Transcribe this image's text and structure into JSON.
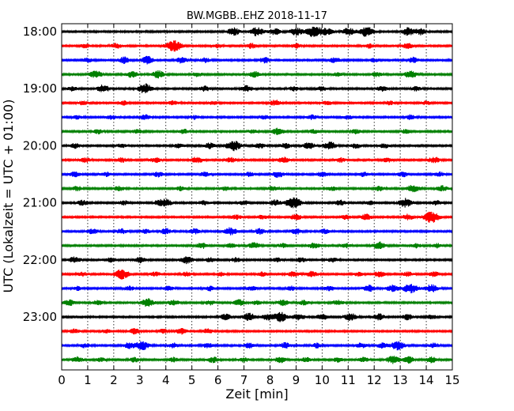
{
  "chart_data": {
    "type": "line",
    "title": "BW.MGBB..EHZ 2018-11-17",
    "xlabel": "Zeit  [min]",
    "ylabel": "UTC (Lokalzeit = UTC + 01:00)",
    "xlim": [
      0,
      15
    ],
    "x_ticks": [
      "0",
      "1",
      "2",
      "3",
      "4",
      "5",
      "6",
      "7",
      "8",
      "9",
      "10",
      "11",
      "12",
      "13",
      "14",
      "15"
    ],
    "y_ticks": [
      "18:00",
      "19:00",
      "20:00",
      "21:00",
      "22:00",
      "23:00"
    ],
    "grid": "vertical-dotted",
    "line_interval_min": 15,
    "series": [
      {
        "start": "18:00",
        "color": "#000000",
        "bursts": [
          [
            6.6,
            0.6
          ],
          [
            7.5,
            0.7
          ],
          [
            8.2,
            0.5
          ],
          [
            9.0,
            0.6
          ],
          [
            9.7,
            0.9
          ],
          [
            10.2,
            0.5
          ],
          [
            11.0,
            0.6
          ],
          [
            11.7,
            0.8
          ],
          [
            13.3,
            0.6
          ],
          [
            13.8,
            0.5
          ]
        ]
      },
      {
        "start": "18:15",
        "color": "#ff0000",
        "bursts": [
          [
            0.9,
            0.35
          ],
          [
            2.1,
            0.4
          ],
          [
            4.3,
            0.9
          ],
          [
            6.0,
            0.3
          ],
          [
            7.3,
            0.4
          ],
          [
            9.0,
            0.35
          ],
          [
            11.8,
            0.35
          ],
          [
            13.3,
            0.45
          ]
        ]
      },
      {
        "start": "18:30",
        "color": "#0000ff",
        "bursts": [
          [
            1.0,
            0.35
          ],
          [
            2.4,
            0.5
          ],
          [
            3.3,
            0.6
          ],
          [
            4.6,
            0.45
          ],
          [
            5.5,
            0.35
          ],
          [
            7.8,
            0.45
          ],
          [
            10.5,
            0.45
          ],
          [
            12.0,
            0.3
          ],
          [
            13.5,
            0.45
          ]
        ]
      },
      {
        "start": "18:45",
        "color": "#008000",
        "bursts": [
          [
            1.3,
            0.6
          ],
          [
            2.7,
            0.5
          ],
          [
            3.7,
            0.6
          ],
          [
            5.2,
            0.35
          ],
          [
            7.4,
            0.5
          ],
          [
            10.6,
            0.3
          ],
          [
            12.1,
            0.35
          ],
          [
            13.4,
            0.6
          ]
        ]
      },
      {
        "start": "19:00",
        "color": "#000000",
        "bursts": [
          [
            0.4,
            0.35
          ],
          [
            1.6,
            0.6
          ],
          [
            3.2,
            0.8
          ],
          [
            5.5,
            0.4
          ],
          [
            7.1,
            0.5
          ],
          [
            8.9,
            0.35
          ],
          [
            10.0,
            0.35
          ],
          [
            12.3,
            0.4
          ],
          [
            13.6,
            0.35
          ]
        ]
      },
      {
        "start": "19:15",
        "color": "#ff0000",
        "bursts": [
          [
            0.8,
            0.3
          ],
          [
            2.4,
            0.3
          ],
          [
            4.3,
            0.35
          ],
          [
            5.8,
            0.3
          ],
          [
            8.2,
            0.45
          ],
          [
            10.2,
            0.3
          ],
          [
            12.6,
            0.3
          ],
          [
            14.0,
            0.3
          ]
        ]
      },
      {
        "start": "19:30",
        "color": "#0000ff",
        "bursts": [
          [
            0.6,
            0.3
          ],
          [
            1.9,
            0.35
          ],
          [
            3.2,
            0.4
          ],
          [
            5.1,
            0.3
          ],
          [
            7.8,
            0.3
          ],
          [
            9.6,
            0.35
          ],
          [
            11.0,
            0.3
          ],
          [
            13.4,
            0.35
          ]
        ]
      },
      {
        "start": "19:45",
        "color": "#008000",
        "bursts": [
          [
            1.4,
            0.35
          ],
          [
            2.9,
            0.3
          ],
          [
            4.7,
            0.35
          ],
          [
            7.3,
            0.3
          ],
          [
            8.3,
            0.55
          ],
          [
            9.7,
            0.3
          ],
          [
            11.3,
            0.35
          ],
          [
            13.2,
            0.3
          ]
        ]
      },
      {
        "start": "20:00",
        "color": "#000000",
        "bursts": [
          [
            0.5,
            0.4
          ],
          [
            2.3,
            0.3
          ],
          [
            4.5,
            0.35
          ],
          [
            5.7,
            0.5
          ],
          [
            6.6,
            0.8
          ],
          [
            7.6,
            0.4
          ],
          [
            8.6,
            0.45
          ],
          [
            9.5,
            0.5
          ],
          [
            10.3,
            0.6
          ],
          [
            11.3,
            0.4
          ],
          [
            12.4,
            0.35
          ]
        ]
      },
      {
        "start": "20:15",
        "color": "#ff0000",
        "bursts": [
          [
            0.9,
            0.4
          ],
          [
            2.3,
            0.35
          ],
          [
            3.6,
            0.4
          ],
          [
            5.2,
            0.5
          ],
          [
            6.5,
            0.4
          ],
          [
            8.5,
            0.5
          ],
          [
            10.7,
            0.35
          ],
          [
            12.5,
            0.35
          ],
          [
            14.3,
            0.5
          ]
        ]
      },
      {
        "start": "20:30",
        "color": "#0000ff",
        "bursts": [
          [
            0.5,
            0.4
          ],
          [
            1.7,
            0.35
          ],
          [
            3.7,
            0.4
          ],
          [
            5.5,
            0.35
          ],
          [
            7.2,
            0.35
          ],
          [
            8.3,
            0.5
          ],
          [
            10.0,
            0.4
          ],
          [
            11.6,
            0.35
          ],
          [
            13.1,
            0.4
          ],
          [
            14.5,
            0.35
          ]
        ]
      },
      {
        "start": "20:45",
        "color": "#008000",
        "bursts": [
          [
            0.6,
            0.35
          ],
          [
            2.2,
            0.35
          ],
          [
            4.6,
            0.35
          ],
          [
            6.3,
            0.3
          ],
          [
            8.1,
            0.35
          ],
          [
            10.4,
            0.3
          ],
          [
            12.2,
            0.35
          ],
          [
            13.5,
            0.6
          ],
          [
            14.6,
            0.45
          ]
        ]
      },
      {
        "start": "21:00",
        "color": "#000000",
        "bursts": [
          [
            0.8,
            0.4
          ],
          [
            2.4,
            0.35
          ],
          [
            3.7,
            0.35
          ],
          [
            4.0,
            0.55
          ],
          [
            5.5,
            0.35
          ],
          [
            7.0,
            0.35
          ],
          [
            8.2,
            0.45
          ],
          [
            8.9,
            0.9
          ],
          [
            10.7,
            0.4
          ],
          [
            11.8,
            0.35
          ],
          [
            13.2,
            0.7
          ],
          [
            14.4,
            0.35
          ]
        ]
      },
      {
        "start": "21:15",
        "color": "#ff0000",
        "bursts": [
          [
            6.7,
            0.35
          ],
          [
            7.7,
            0.35
          ],
          [
            9.0,
            0.45
          ],
          [
            10.9,
            0.35
          ],
          [
            11.7,
            0.45
          ],
          [
            13.3,
            0.45
          ],
          [
            14.2,
            0.9
          ]
        ]
      },
      {
        "start": "21:30",
        "color": "#0000ff",
        "bursts": [
          [
            1.2,
            0.45
          ],
          [
            2.3,
            0.4
          ],
          [
            3.2,
            0.35
          ],
          [
            4.0,
            0.45
          ],
          [
            5.1,
            0.4
          ],
          [
            6.5,
            0.6
          ],
          [
            7.6,
            0.45
          ],
          [
            9.0,
            0.45
          ],
          [
            10.1,
            0.35
          ]
        ]
      },
      {
        "start": "21:45",
        "color": "#008000",
        "bursts": [
          [
            5.4,
            0.45
          ],
          [
            6.5,
            0.35
          ],
          [
            7.4,
            0.5
          ],
          [
            8.5,
            0.35
          ],
          [
            9.7,
            0.45
          ],
          [
            10.9,
            0.35
          ],
          [
            12.2,
            0.6
          ],
          [
            13.6,
            0.35
          ],
          [
            14.4,
            0.35
          ]
        ]
      },
      {
        "start": "22:00",
        "color": "#000000",
        "bursts": [
          [
            0.5,
            0.5
          ],
          [
            1.9,
            0.35
          ],
          [
            3.0,
            0.45
          ],
          [
            4.8,
            0.6
          ],
          [
            5.7,
            0.35
          ],
          [
            6.7,
            0.35
          ],
          [
            8.3,
            0.3
          ],
          [
            9.2,
            0.35
          ],
          [
            10.4,
            0.35
          ]
        ]
      },
      {
        "start": "22:15",
        "color": "#ff0000",
        "bursts": [
          [
            0.8,
            0.35
          ],
          [
            2.3,
            0.8
          ],
          [
            3.6,
            0.35
          ],
          [
            4.8,
            0.35
          ],
          [
            6.1,
            0.3
          ],
          [
            7.7,
            0.35
          ],
          [
            8.9,
            0.45
          ],
          [
            9.6,
            0.45
          ],
          [
            11.4,
            0.3
          ],
          [
            12.2,
            0.45
          ],
          [
            13.3,
            0.35
          ],
          [
            14.3,
            0.4
          ]
        ]
      },
      {
        "start": "22:30",
        "color": "#0000ff",
        "bursts": [
          [
            0.6,
            0.3
          ],
          [
            2.6,
            0.35
          ],
          [
            4.1,
            0.35
          ],
          [
            5.7,
            0.35
          ],
          [
            7.3,
            0.3
          ],
          [
            8.8,
            0.35
          ],
          [
            10.3,
            0.35
          ],
          [
            11.8,
            0.5
          ],
          [
            12.7,
            0.55
          ],
          [
            13.4,
            0.8
          ],
          [
            14.2,
            0.6
          ]
        ]
      },
      {
        "start": "22:45",
        "color": "#008000",
        "bursts": [
          [
            0.3,
            0.45
          ],
          [
            1.4,
            0.35
          ],
          [
            3.3,
            0.65
          ],
          [
            4.3,
            0.45
          ],
          [
            5.7,
            0.35
          ],
          [
            6.8,
            0.5
          ],
          [
            7.5,
            0.35
          ],
          [
            8.5,
            0.45
          ],
          [
            9.3,
            0.35
          ],
          [
            10.6,
            0.4
          ]
        ]
      },
      {
        "start": "23:00",
        "color": "#000000",
        "bursts": [
          [
            6.3,
            0.45
          ],
          [
            7.2,
            0.6
          ],
          [
            7.9,
            0.45
          ],
          [
            8.4,
            0.75
          ],
          [
            9.1,
            0.55
          ],
          [
            10.0,
            0.45
          ],
          [
            11.1,
            0.6
          ],
          [
            12.2,
            0.5
          ],
          [
            13.3,
            0.45
          ],
          [
            14.2,
            0.35
          ]
        ]
      },
      {
        "start": "23:15",
        "color": "#ff0000",
        "bursts": [
          [
            0.5,
            0.35
          ],
          [
            1.7,
            0.3
          ],
          [
            2.8,
            0.45
          ],
          [
            3.9,
            0.35
          ],
          [
            4.6,
            0.45
          ],
          [
            5.6,
            0.35
          ]
        ]
      },
      {
        "start": "23:30",
        "color": "#0000ff",
        "bursts": [
          [
            0.9,
            0.35
          ],
          [
            2.6,
            0.45
          ],
          [
            3.1,
            0.7
          ],
          [
            4.3,
            0.4
          ],
          [
            5.6,
            0.35
          ],
          [
            7.2,
            0.4
          ],
          [
            8.6,
            0.45
          ],
          [
            9.8,
            0.35
          ],
          [
            11.5,
            0.4
          ],
          [
            12.3,
            0.4
          ],
          [
            12.9,
            0.7
          ],
          [
            14.3,
            0.35
          ]
        ]
      },
      {
        "start": "23:45",
        "color": "#008000",
        "bursts": [
          [
            0.6,
            0.45
          ],
          [
            1.5,
            0.3
          ],
          [
            2.8,
            0.35
          ],
          [
            4.3,
            0.35
          ],
          [
            5.8,
            0.45
          ],
          [
            7.0,
            0.35
          ],
          [
            8.4,
            0.45
          ],
          [
            9.4,
            0.35
          ],
          [
            10.6,
            0.35
          ],
          [
            11.6,
            0.35
          ],
          [
            12.7,
            0.6
          ],
          [
            13.3,
            0.55
          ],
          [
            14.2,
            0.45
          ]
        ]
      }
    ]
  }
}
